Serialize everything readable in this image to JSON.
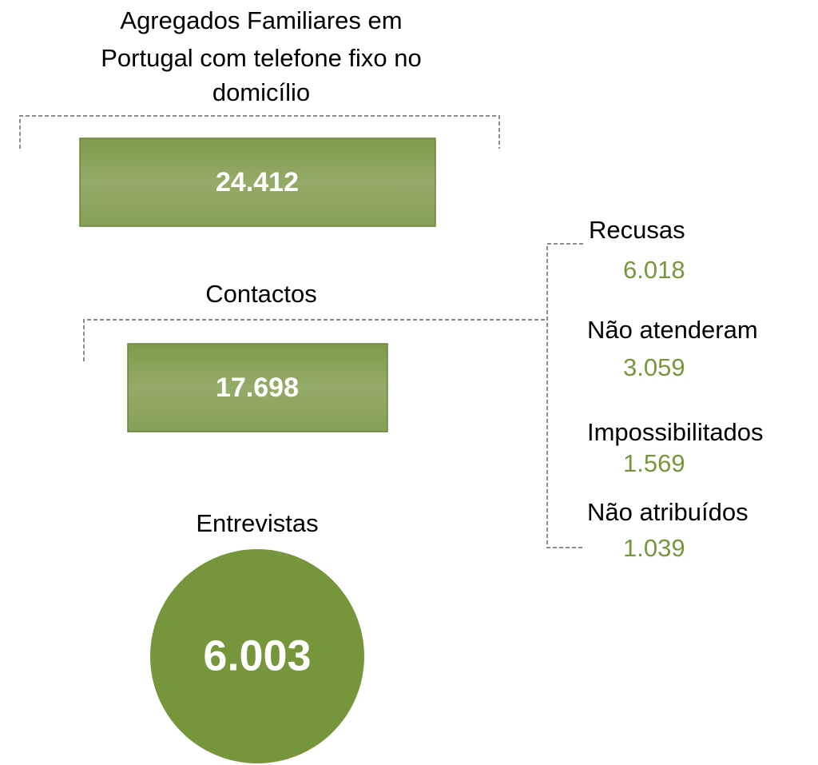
{
  "title": {
    "lines": [
      "Agregados Familiares em",
      "Portugal com telefone fixo no",
      "domicílio"
    ]
  },
  "households": {
    "value": "24.412"
  },
  "contacts": {
    "label": "Contactos",
    "value": "17.698"
  },
  "interviews": {
    "label": "Entrevistas",
    "value": "6.003"
  },
  "outcomes": [
    {
      "label": "Recusas",
      "value": "6.018"
    },
    {
      "label": "Não atenderam",
      "value": "3.059"
    },
    {
      "label": "Impossibilitados",
      "value": "1.569"
    },
    {
      "label": "Não atribuídos",
      "value": "1.039"
    }
  ]
}
